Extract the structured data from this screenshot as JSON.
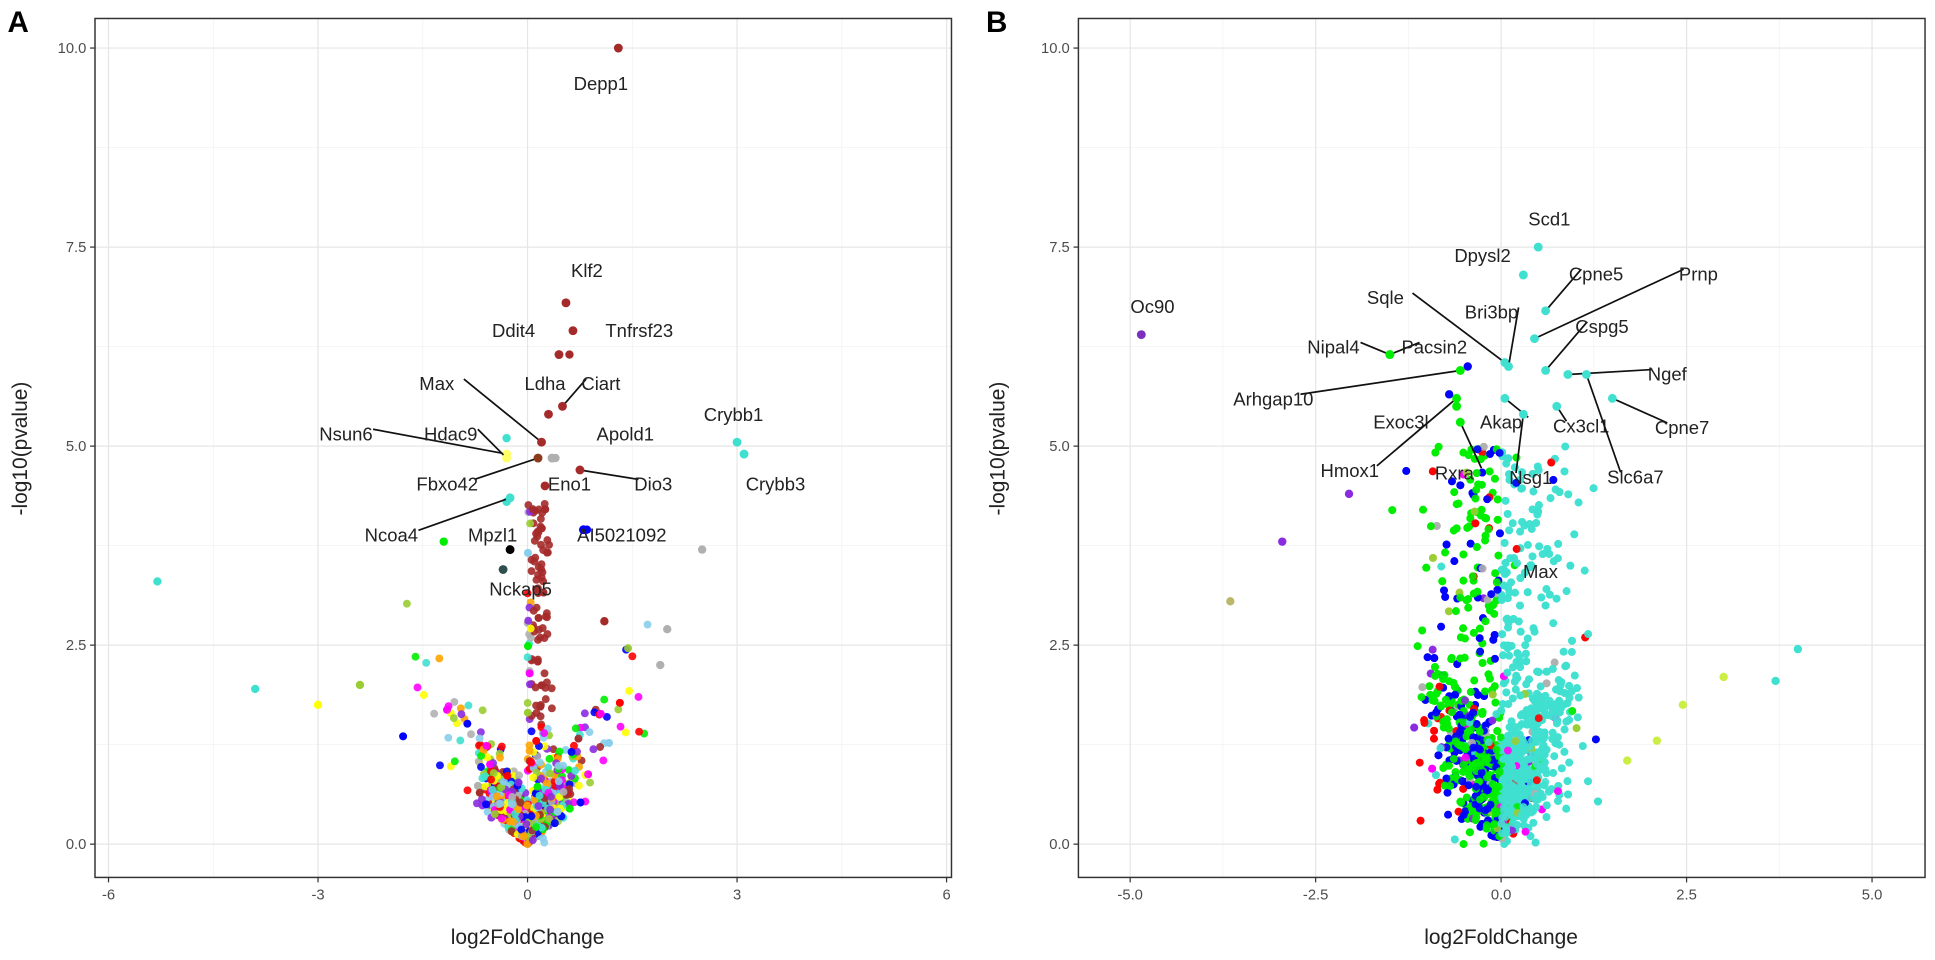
{
  "chart_data": [
    {
      "type": "scatter",
      "panel_label": "A",
      "xlabel": "log2FoldChange",
      "ylabel": "-log10(pvalue)",
      "xlim": [
        -6.3,
        6.1
      ],
      "ylim": [
        -0.45,
        10.35
      ],
      "xticks": [
        -6,
        -3,
        0,
        3,
        6
      ],
      "xtick_labels": [
        "-6",
        "-3",
        "0",
        "3",
        "6"
      ],
      "yticks": [
        0,
        2.5,
        5,
        7.5,
        10
      ],
      "ytick_labels": [
        "0.0",
        "2.5",
        "5.0",
        "7.5",
        "10.0"
      ],
      "grid": true,
      "cloud": {
        "shape": "narrow",
        "colors": [
          "#ff0000",
          "#0000ff",
          "#00ee00",
          "#ffff00",
          "#ff00ff",
          "#40e0d0",
          "#a52a2a",
          "#87ceeb",
          "#b0b0b0",
          "#ffa500",
          "#9acd32",
          "#8a2be2"
        ]
      },
      "points": [
        {
          "x": -5.3,
          "y": 3.3,
          "color": "#40e0d0"
        },
        {
          "x": -3.9,
          "y": 1.95,
          "color": "#40e0d0"
        },
        {
          "x": -3.0,
          "y": 1.75,
          "color": "#ffff00"
        },
        {
          "x": -2.4,
          "y": 2.0,
          "color": "#9acd32"
        },
        {
          "x": 2.5,
          "y": 3.7,
          "color": "#b0b0b0"
        },
        {
          "x": 2.0,
          "y": 2.7,
          "color": "#b0b0b0"
        },
        {
          "x": 1.9,
          "y": 2.25,
          "color": "#b0b0b0"
        },
        {
          "x": 1.1,
          "y": 2.8,
          "color": "#a52a2a"
        },
        {
          "x": 0.85,
          "y": 3.95,
          "color": "#0000ff"
        },
        {
          "x": 0.6,
          "y": 6.15,
          "color": "#a52a2a"
        },
        {
          "x": 0.4,
          "y": 4.85,
          "color": "#b0b0b0"
        },
        {
          "x": -0.3,
          "y": 4.3,
          "color": "#40e0d0"
        },
        {
          "x": -0.3,
          "y": 5.1,
          "color": "#40e0d0"
        },
        {
          "x": -1.2,
          "y": 3.8,
          "color": "#00ee00"
        }
      ],
      "labeled": [
        {
          "gene": "Depp1",
          "x": 1.3,
          "y": 10.0,
          "lx": 1.05,
          "ly": 9.55,
          "color": "#a52a2a",
          "line": false
        },
        {
          "gene": "Klf2",
          "x": 0.55,
          "y": 6.8,
          "lx": 0.85,
          "ly": 7.2,
          "color": "#a52a2a",
          "line": false
        },
        {
          "gene": "Tnfrsf23",
          "x": 0.65,
          "y": 6.45,
          "lx": 1.6,
          "ly": 6.45,
          "color": "#a52a2a",
          "line": false
        },
        {
          "gene": "Ddit4",
          "x": 0.45,
          "y": 6.15,
          "lx": -0.2,
          "ly": 6.45,
          "color": "#a52a2a",
          "line": false
        },
        {
          "gene": "Ldha",
          "x": 0.3,
          "y": 5.4,
          "lx": 0.25,
          "ly": 5.78,
          "color": "#a52a2a",
          "line": false
        },
        {
          "gene": "Ciart",
          "x": 0.5,
          "y": 5.5,
          "lx": 1.05,
          "ly": 5.78,
          "color": "#a52a2a",
          "line": true
        },
        {
          "gene": "Max",
          "x": 0.2,
          "y": 5.05,
          "lx": -1.3,
          "ly": 5.78,
          "color": "#a52a2a",
          "line": true
        },
        {
          "gene": "Nsun6",
          "x": -0.3,
          "y": 4.9,
          "lx": -2.6,
          "ly": 5.15,
          "color": "#ffff66",
          "line": true
        },
        {
          "gene": "Hdac9",
          "x": -0.3,
          "y": 4.85,
          "lx": -1.1,
          "ly": 5.15,
          "color": "#ffff66",
          "line": true
        },
        {
          "gene": "Apold1",
          "x": 0.35,
          "y": 4.85,
          "lx": 1.4,
          "ly": 5.15,
          "color": "#b0b0b0",
          "line": false
        },
        {
          "gene": "Fbxo42",
          "x": 0.15,
          "y": 4.85,
          "lx": -1.15,
          "ly": 4.52,
          "color": "#8b3a1a",
          "line": true
        },
        {
          "gene": "Eno1",
          "x": 0.25,
          "y": 4.5,
          "lx": 0.6,
          "ly": 4.52,
          "color": "#a52a2a",
          "line": false
        },
        {
          "gene": "Dio3",
          "x": 0.75,
          "y": 4.7,
          "lx": 1.8,
          "ly": 4.52,
          "color": "#a52a2a",
          "line": true
        },
        {
          "gene": "Crybb1",
          "x": 3.0,
          "y": 5.05,
          "lx": 2.95,
          "ly": 5.39,
          "color": "#40e0d0",
          "line": false
        },
        {
          "gene": "Crybb3",
          "x": 3.1,
          "y": 4.9,
          "lx": 3.55,
          "ly": 4.52,
          "color": "#40e0d0",
          "line": false
        },
        {
          "gene": "Ncoa4",
          "x": -0.25,
          "y": 4.35,
          "lx": -1.95,
          "ly": 3.88,
          "color": "#40e0d0",
          "line": true
        },
        {
          "gene": "Mpzl1",
          "x": -0.25,
          "y": 3.7,
          "lx": -0.5,
          "ly": 3.88,
          "color": "#000000",
          "line": false
        },
        {
          "gene": "AI5021092",
          "x": 0.8,
          "y": 3.95,
          "lx": 1.35,
          "ly": 3.88,
          "color": "#0000ff",
          "line": false
        },
        {
          "gene": "Nckap5",
          "x": -0.35,
          "y": 3.45,
          "lx": -0.1,
          "ly": 3.2,
          "color": "#2f4f4f",
          "line": false
        }
      ]
    },
    {
      "type": "scatter",
      "panel_label": "B",
      "xlabel": "log2FoldChange",
      "ylabel": "-log10(pvalue)",
      "xlim": [
        -5.7,
        5.7
      ],
      "ylim": [
        -0.45,
        10.35
      ],
      "xticks": [
        -5,
        -2.5,
        0,
        2.5,
        5
      ],
      "xtick_labels": [
        "-5.0",
        "-2.5",
        "0.0",
        "2.5",
        "5.0"
      ],
      "yticks": [
        0,
        2.5,
        5,
        7.5,
        10
      ],
      "ytick_labels": [
        "0.0",
        "2.5",
        "5.0",
        "7.5",
        "10.0"
      ],
      "grid": true,
      "cloud": {
        "shape": "wide",
        "colors": [
          "#ff0000",
          "#0000ff",
          "#00ee00",
          "#ff00ff",
          "#40e0d0",
          "#b0b0b0",
          "#9acd32",
          "#8a2be2"
        ]
      },
      "points": [
        {
          "x": -3.65,
          "y": 3.05,
          "color": "#bdb76b"
        },
        {
          "x": -2.95,
          "y": 3.8,
          "color": "#8a2be2"
        },
        {
          "x": -2.05,
          "y": 4.4,
          "color": "#8a2be2"
        },
        {
          "x": 4.0,
          "y": 2.45,
          "color": "#40e0d0"
        },
        {
          "x": 3.7,
          "y": 2.05,
          "color": "#40e0d0"
        },
        {
          "x": 3.0,
          "y": 2.1,
          "color": "#ccee44"
        },
        {
          "x": 2.45,
          "y": 1.75,
          "color": "#ccee44"
        },
        {
          "x": 2.1,
          "y": 1.3,
          "color": "#ccee44"
        },
        {
          "x": 1.7,
          "y": 1.05,
          "color": "#ccee44"
        },
        {
          "x": 0.5,
          "y": 7.5,
          "color": "#40e0d0"
        },
        {
          "x": 0.3,
          "y": 7.15,
          "color": "#40e0d0"
        },
        {
          "x": -0.45,
          "y": 6.0,
          "color": "#0000ff"
        },
        {
          "x": -0.7,
          "y": 5.65,
          "color": "#0000ff"
        }
      ],
      "labeled": [
        {
          "gene": "Oc90",
          "x": -4.85,
          "y": 6.4,
          "lx": -4.7,
          "ly": 6.75,
          "color": "#7b2fbe",
          "line": false
        },
        {
          "gene": "Scd1",
          "x": 0.5,
          "y": 7.5,
          "lx": 0.65,
          "ly": 7.85,
          "color": "#40e0d0",
          "line": false
        },
        {
          "gene": "Dpysl2",
          "x": 0.3,
          "y": 7.15,
          "lx": -0.25,
          "ly": 7.39,
          "color": "#40e0d0",
          "line": false
        },
        {
          "gene": "Cpne5",
          "x": 0.6,
          "y": 6.7,
          "lx": 1.28,
          "ly": 7.16,
          "color": "#40e0d0",
          "line": true
        },
        {
          "gene": "Prnp",
          "x": 0.45,
          "y": 6.35,
          "lx": 2.66,
          "ly": 7.16,
          "color": "#40e0d0",
          "line": true
        },
        {
          "gene": "Sqle",
          "x": 0.05,
          "y": 6.05,
          "lx": -1.56,
          "ly": 6.86,
          "color": "#40e0d0",
          "line": true
        },
        {
          "gene": "Bri3bp",
          "x": 0.1,
          "y": 6.0,
          "lx": -0.13,
          "ly": 6.68,
          "color": "#40e0d0",
          "line": true
        },
        {
          "gene": "Cspg5",
          "x": 0.6,
          "y": 5.95,
          "lx": 1.36,
          "ly": 6.5,
          "color": "#40e0d0",
          "line": true
        },
        {
          "gene": "Nipal4",
          "x": -1.5,
          "y": 6.15,
          "lx": -2.26,
          "ly": 6.24,
          "color": "#00ee00",
          "line": true
        },
        {
          "gene": "Pacsin2",
          "x": -1.5,
          "y": 6.15,
          "lx": -0.9,
          "ly": 6.24,
          "color": "#00ee00",
          "line": true
        },
        {
          "gene": "Ngef",
          "x": 0.9,
          "y": 5.9,
          "lx": 2.24,
          "ly": 5.9,
          "color": "#40e0d0",
          "line": true
        },
        {
          "gene": "Arhgap10",
          "x": -0.55,
          "y": 5.95,
          "lx": -3.07,
          "ly": 5.59,
          "color": "#00ee00",
          "line": true
        },
        {
          "gene": "Cpne7",
          "x": 1.5,
          "y": 5.6,
          "lx": 2.44,
          "ly": 5.23,
          "color": "#40e0d0",
          "line": true
        },
        {
          "gene": "Exoc3l",
          "x": -0.6,
          "y": 5.5,
          "lx": -1.35,
          "ly": 5.3,
          "color": "#00ee00",
          "line": false
        },
        {
          "gene": "Akap",
          "x": 0.05,
          "y": 5.6,
          "lx": 0.0,
          "ly": 5.3,
          "color": "#40e0d0",
          "line": true
        },
        {
          "gene": "Cx3cl1",
          "x": 0.75,
          "y": 5.5,
          "lx": 1.08,
          "ly": 5.25,
          "color": "#40e0d0",
          "line": true
        },
        {
          "gene": "Hmox1",
          "x": -0.6,
          "y": 5.6,
          "lx": -2.04,
          "ly": 4.69,
          "color": "#00ee00",
          "line": true
        },
        {
          "gene": "Rxra",
          "x": -0.55,
          "y": 5.3,
          "lx": -0.63,
          "ly": 4.66,
          "color": "#00ee00",
          "line": true
        },
        {
          "gene": "Nsg1",
          "x": 0.3,
          "y": 5.4,
          "lx": 0.4,
          "ly": 4.6,
          "color": "#40e0d0",
          "line": true
        },
        {
          "gene": "Slc6a7",
          "x": 1.15,
          "y": 5.9,
          "lx": 1.81,
          "ly": 4.61,
          "color": "#40e0d0",
          "line": true
        },
        {
          "gene": "Max",
          "x": 0.4,
          "y": 3.5,
          "lx": 0.53,
          "ly": 3.42,
          "color": "#40e0d0",
          "line": false
        }
      ]
    }
  ]
}
